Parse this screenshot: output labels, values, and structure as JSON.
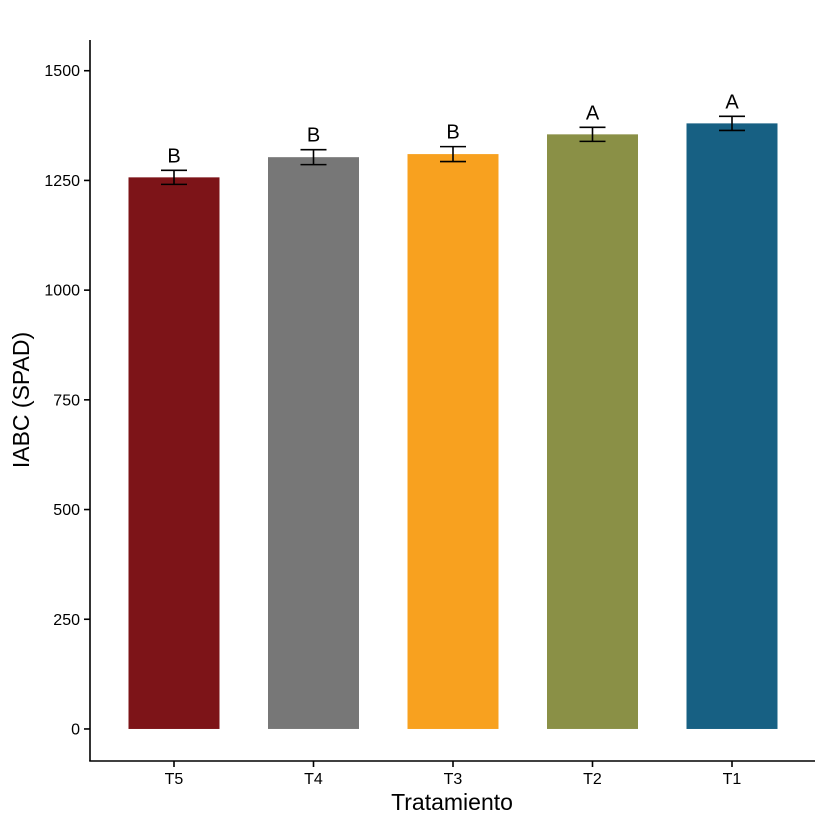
{
  "chart_data": {
    "type": "bar",
    "categories": [
      "T5",
      "T4",
      "T3",
      "T2",
      "T1"
    ],
    "values": [
      1257,
      1303,
      1310,
      1355,
      1380
    ],
    "error": [
      16,
      17,
      17,
      16,
      16
    ],
    "group_letters": [
      "B",
      "B",
      "B",
      "A",
      "A"
    ],
    "colors": [
      "#7d1418",
      "#777777",
      "#f8a11f",
      "#8a9046",
      "#176083"
    ],
    "xlabel": "Tratamiento",
    "ylabel": "IABC (SPAD)",
    "ylim": [
      -73,
      1570
    ],
    "yticks": [
      0,
      250,
      500,
      750,
      1000,
      1250,
      1500
    ],
    "grid": false,
    "legend": "none"
  }
}
